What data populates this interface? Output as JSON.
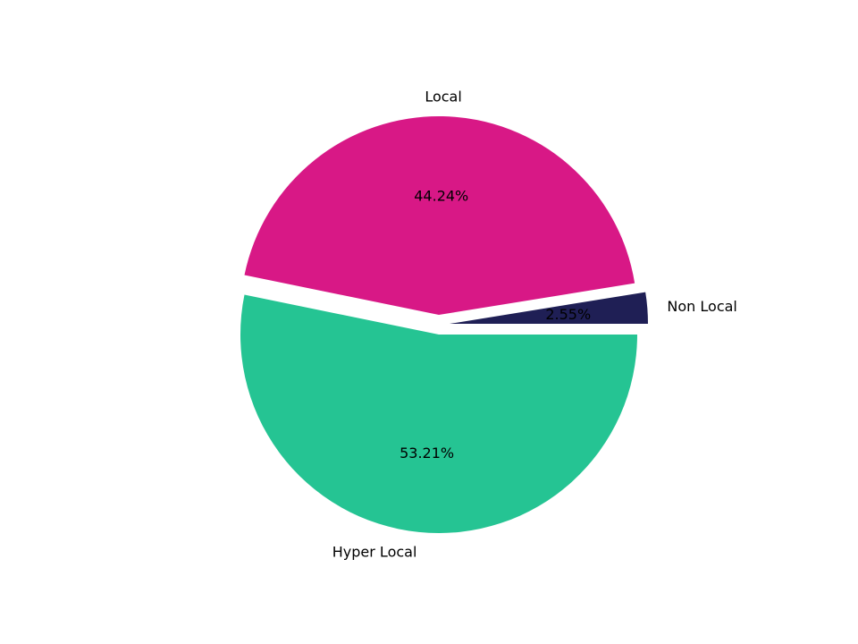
{
  "chart_data": {
    "type": "pie",
    "title": "",
    "categories": [
      "Non Local",
      "Local",
      "Hyper Local"
    ],
    "values": [
      2.55,
      44.24,
      53.21
    ],
    "value_labels": [
      "2.55%",
      "44.24%",
      "53.21%"
    ],
    "colors": [
      "#1f1f55",
      "#d81886",
      "#25c493"
    ],
    "explode": [
      0.1,
      0.1,
      0
    ],
    "start_angle_deg": 0,
    "counterclockwise": true,
    "legend": "none"
  }
}
